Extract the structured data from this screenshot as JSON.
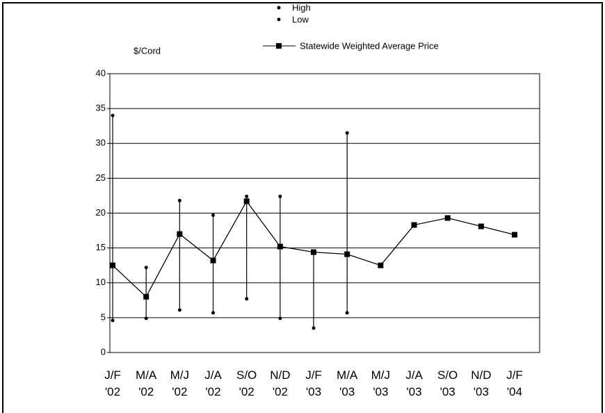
{
  "chart_data": {
    "type": "line",
    "y_label": "$/Cord",
    "categories": [
      "J/F\n'02",
      "M/A\n'02",
      "M/J\n'02",
      "J/A\n'02",
      "S/O\n'02",
      "N/D\n'02",
      "J/F\n'03",
      "M/A\n'03",
      "M/J\n'03",
      "J/A\n'03",
      "S/O\n'03",
      "N/D\n'03",
      "J/F\n'04"
    ],
    "series": [
      {
        "name": "High",
        "color": "#000000",
        "values": [
          34,
          12.2,
          21.8,
          19.7,
          22.4,
          22.4,
          null,
          31.5,
          null,
          null,
          null,
          null,
          null
        ]
      },
      {
        "name": "Low",
        "color": "#000000",
        "values": [
          4.6,
          4.9,
          6.1,
          5.7,
          7.7,
          4.9,
          3.5,
          5.7,
          null,
          null,
          null,
          null,
          null
        ]
      },
      {
        "name": "Statewide Weighted Average Price",
        "color": "#000000",
        "values": [
          12.5,
          8.0,
          17.0,
          13.2,
          21.7,
          15.2,
          14.4,
          14.1,
          12.5,
          18.3,
          19.3,
          18.1,
          16.9
        ]
      }
    ],
    "ylim": [
      0,
      40
    ],
    "yticks": [
      0,
      5,
      10,
      15,
      20,
      25,
      30,
      35,
      40
    ],
    "grid": true
  }
}
